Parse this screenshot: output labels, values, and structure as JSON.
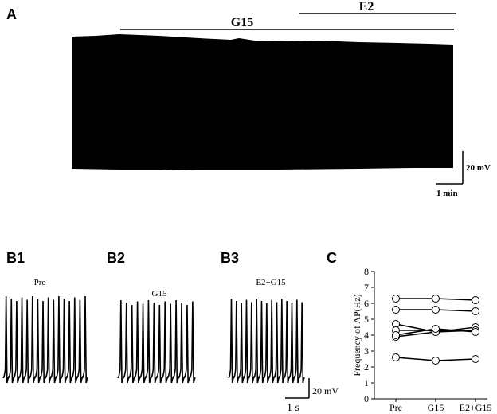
{
  "panels": {
    "A": "A",
    "B1": "B1",
    "B2": "B2",
    "B3": "B3",
    "C": "C"
  },
  "panel_a": {
    "bar_g15": "G15",
    "bar_e2": "E2",
    "scale_voltage": "20 mV",
    "scale_time": "1 min"
  },
  "panel_b": {
    "b1_label": "Pre",
    "b2_label": "G15",
    "b3_label": "E2+G15",
    "scale_voltage": "20 mV",
    "scale_time": "1 s",
    "b1_spikes": 16,
    "b2_spikes": 14,
    "b3_spikes": 15
  },
  "chart_data": {
    "type": "line",
    "title": "",
    "xlabel": "",
    "ylabel": "Frequency of AP(Hz)",
    "categories": [
      "Pre",
      "G15",
      "E2+G15"
    ],
    "ylim": [
      0,
      8
    ],
    "yticks": [
      "0",
      "1",
      "2",
      "3",
      "4",
      "5",
      "6",
      "7",
      "8"
    ],
    "series": [
      {
        "values": [
          6.3,
          6.3,
          6.2
        ]
      },
      {
        "values": [
          5.6,
          5.6,
          5.5
        ]
      },
      {
        "values": [
          4.7,
          4.2,
          4.5
        ]
      },
      {
        "values": [
          4.3,
          4.3,
          4.3
        ]
      },
      {
        "values": [
          3.9,
          4.2,
          4.3
        ]
      },
      {
        "values": [
          4.0,
          4.4,
          4.2
        ]
      },
      {
        "values": [
          2.6,
          2.4,
          2.5
        ]
      }
    ],
    "marker": "open-circle",
    "line_color": "#000000"
  }
}
